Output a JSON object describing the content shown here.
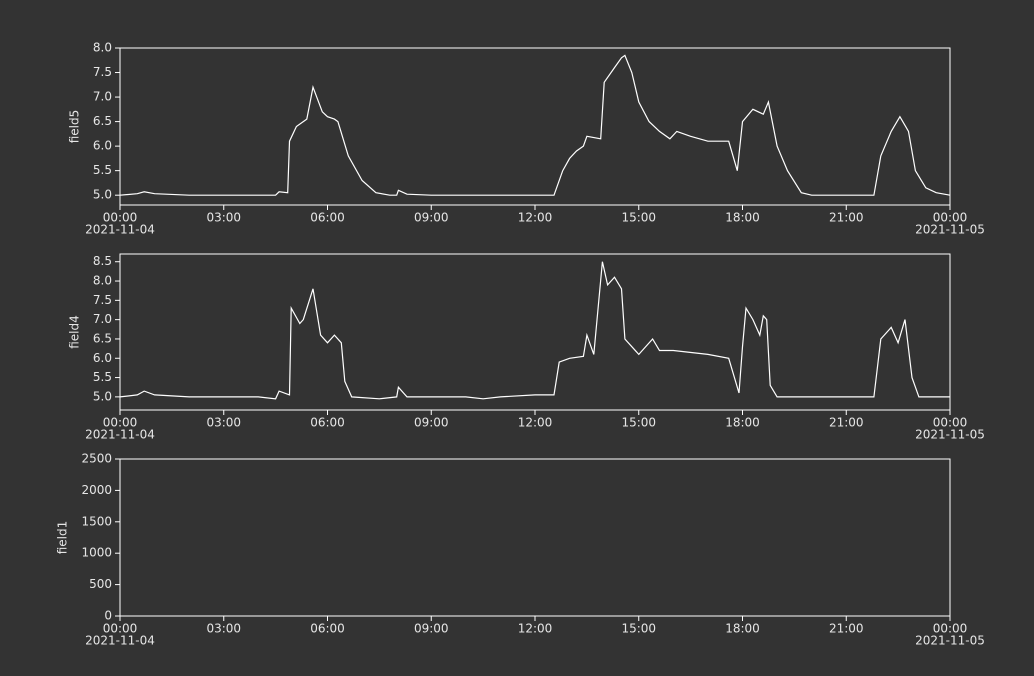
{
  "chart_data": [
    {
      "type": "line",
      "y_label": "field5",
      "color": "#ffffff",
      "xlim": [
        0,
        24
      ],
      "xticks": [
        {
          "value": 0,
          "label": "00:00"
        },
        {
          "value": 3,
          "label": "03:00"
        },
        {
          "value": 6,
          "label": "06:00"
        },
        {
          "value": 9,
          "label": "09:00"
        },
        {
          "value": 12,
          "label": "12:00"
        },
        {
          "value": 15,
          "label": "15:00"
        },
        {
          "value": 18,
          "label": "18:00"
        },
        {
          "value": 21,
          "label": "21:00"
        },
        {
          "value": 24,
          "label": "00:00"
        }
      ],
      "x_dates": [
        {
          "value": 0,
          "label": "2021-11-04"
        },
        {
          "value": 24,
          "label": "2021-11-05"
        }
      ],
      "ylim": [
        4.8,
        8.0
      ],
      "yticks": [
        {
          "value": 5,
          "label": "5.0"
        },
        5.5,
        {
          "value": 6,
          "label": "6.0"
        },
        6.5,
        {
          "value": 7,
          "label": "7.0"
        },
        7.5,
        {
          "value": 8,
          "label": "8.0"
        }
      ],
      "x": [
        0,
        0.5,
        0.7,
        1.0,
        2.0,
        3.0,
        4.0,
        4.5,
        4.6,
        4.85,
        4.9,
        5.1,
        5.4,
        5.58,
        5.85,
        6.0,
        6.2,
        6.3,
        6.6,
        7.0,
        7.4,
        7.8,
        8.0,
        8.05,
        8.3,
        9.0,
        10.0,
        11.0,
        12.0,
        12.55,
        12.8,
        13.0,
        13.2,
        13.4,
        13.5,
        13.9,
        14.0,
        14.3,
        14.5,
        14.6,
        14.8,
        15.0,
        15.3,
        15.6,
        15.9,
        16.1,
        16.5,
        17.0,
        17.6,
        17.85,
        18.0,
        18.3,
        18.6,
        18.75,
        19.0,
        19.3,
        19.7,
        20.0,
        21.0,
        21.8,
        22.0,
        22.3,
        22.55,
        22.8,
        23.0,
        23.3,
        23.6,
        24
      ],
      "values": [
        5.0,
        5.03,
        5.07,
        5.03,
        5.0,
        5.0,
        5.0,
        5.0,
        5.07,
        5.05,
        6.1,
        6.4,
        6.55,
        7.2,
        6.7,
        6.6,
        6.55,
        6.5,
        5.8,
        5.3,
        5.05,
        5.0,
        5.0,
        5.1,
        5.02,
        5.0,
        5.0,
        5.0,
        5.0,
        5.0,
        5.5,
        5.75,
        5.9,
        6.0,
        6.2,
        6.15,
        7.3,
        7.6,
        7.8,
        7.85,
        7.5,
        6.9,
        6.5,
        6.3,
        6.15,
        6.3,
        6.2,
        6.1,
        6.1,
        5.5,
        6.5,
        6.75,
        6.65,
        6.9,
        6.0,
        5.5,
        5.05,
        5.0,
        5.0,
        5.0,
        5.8,
        6.3,
        6.6,
        6.3,
        5.5,
        5.15,
        5.05,
        5.0
      ]
    },
    {
      "type": "line",
      "y_label": "field4",
      "color": "#ffffff",
      "xlim": [
        0,
        24
      ],
      "xticks": [
        {
          "value": 0,
          "label": "00:00"
        },
        {
          "value": 3,
          "label": "03:00"
        },
        {
          "value": 6,
          "label": "06:00"
        },
        {
          "value": 9,
          "label": "09:00"
        },
        {
          "value": 12,
          "label": "12:00"
        },
        {
          "value": 15,
          "label": "15:00"
        },
        {
          "value": 18,
          "label": "18:00"
        },
        {
          "value": 21,
          "label": "21:00"
        },
        {
          "value": 24,
          "label": "00:00"
        }
      ],
      "x_dates": [
        {
          "value": 0,
          "label": "2021-11-04"
        },
        {
          "value": 24,
          "label": "2021-11-05"
        }
      ],
      "ylim": [
        4.66,
        8.7
      ],
      "yticks": [
        {
          "value": 5,
          "label": "5.0"
        },
        5.5,
        {
          "value": 6,
          "label": "6.0"
        },
        6.5,
        {
          "value": 7,
          "label": "7.0"
        },
        7.5,
        {
          "value": 8,
          "label": "8.0"
        },
        8.5
      ],
      "x": [
        0,
        0.5,
        0.7,
        1.0,
        2.0,
        3.0,
        4.0,
        4.5,
        4.6,
        4.9,
        4.95,
        5.2,
        5.3,
        5.58,
        5.8,
        6.0,
        6.2,
        6.4,
        6.5,
        6.7,
        7.5,
        8.0,
        8.05,
        8.3,
        9.0,
        10.0,
        10.5,
        11.0,
        12.0,
        12.55,
        12.7,
        13.0,
        13.4,
        13.5,
        13.7,
        13.95,
        14.1,
        14.3,
        14.5,
        14.6,
        15.0,
        15.4,
        15.6,
        16.0,
        17.0,
        17.6,
        17.9,
        18.0,
        18.1,
        18.3,
        18.5,
        18.6,
        18.7,
        18.8,
        19.0,
        20.0,
        21.0,
        21.8,
        22.0,
        22.3,
        22.5,
        22.7,
        22.9,
        23.1,
        24
      ],
      "values": [
        5.0,
        5.05,
        5.15,
        5.05,
        5.0,
        5.0,
        5.0,
        4.95,
        5.15,
        5.05,
        7.3,
        6.9,
        7.0,
        7.8,
        6.6,
        6.4,
        6.6,
        6.4,
        5.4,
        5.0,
        4.95,
        5.0,
        5.25,
        5.0,
        5.0,
        5.0,
        4.95,
        5.0,
        5.05,
        5.05,
        5.9,
        6.0,
        6.05,
        6.6,
        6.1,
        8.5,
        7.9,
        8.1,
        7.8,
        6.5,
        6.1,
        6.5,
        6.2,
        6.2,
        6.1,
        6.0,
        5.1,
        6.3,
        7.3,
        7.0,
        6.6,
        7.1,
        7.0,
        5.3,
        5.0,
        5.0,
        5.0,
        5.0,
        6.5,
        6.8,
        6.4,
        7.0,
        5.5,
        5.0,
        5.0
      ]
    },
    {
      "type": "line",
      "y_label": "field1",
      "color": "#ffffff",
      "xlim": [
        0,
        24
      ],
      "xticks": [
        {
          "value": 0,
          "label": "00:00"
        },
        {
          "value": 3,
          "label": "03:00"
        },
        {
          "value": 6,
          "label": "06:00"
        },
        {
          "value": 9,
          "label": "09:00"
        },
        {
          "value": 12,
          "label": "12:00"
        },
        {
          "value": 15,
          "label": "15:00"
        },
        {
          "value": 18,
          "label": "18:00"
        },
        {
          "value": 21,
          "label": "21:00"
        },
        {
          "value": 24,
          "label": "00:00"
        }
      ],
      "x_dates": [
        {
          "value": 0,
          "label": "2021-11-04"
        },
        {
          "value": 24,
          "label": "2021-11-05"
        }
      ],
      "ylim": [
        0,
        2500
      ],
      "yticks": [
        0,
        500,
        1000,
        1500,
        2000,
        2500
      ],
      "x": [],
      "values": []
    }
  ]
}
